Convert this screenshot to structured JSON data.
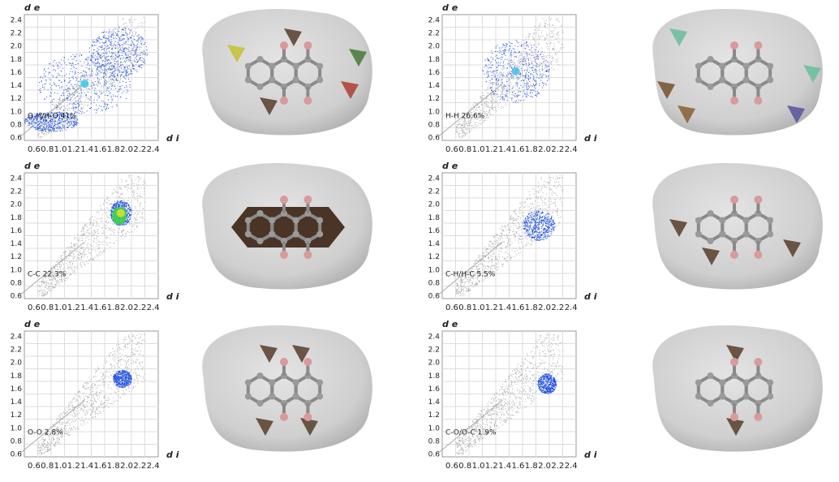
{
  "axes": {
    "y_label": "d e",
    "x_label": "d i",
    "yticks": [
      "2.4",
      "2.2",
      "2.0",
      "1.8",
      "1.6",
      "1.4",
      "1.2",
      "1.0",
      "0.8",
      "0.6"
    ],
    "xticks": [
      "0.6",
      "0.8",
      "1.0",
      "1.2",
      "1.4",
      "1.6",
      "1.8",
      "2.0",
      "2.2",
      "2.4"
    ]
  },
  "panels": [
    {
      "caption": "O-H/H-O 41%"
    },
    {
      "caption": "H-H 26.6%"
    },
    {
      "caption": "C-C 22.3%"
    },
    {
      "caption": "C-H/H-C 5.5%"
    },
    {
      "caption": "O-O 2.8%"
    },
    {
      "caption": "C-O/O-C 1.9%"
    }
  ]
}
